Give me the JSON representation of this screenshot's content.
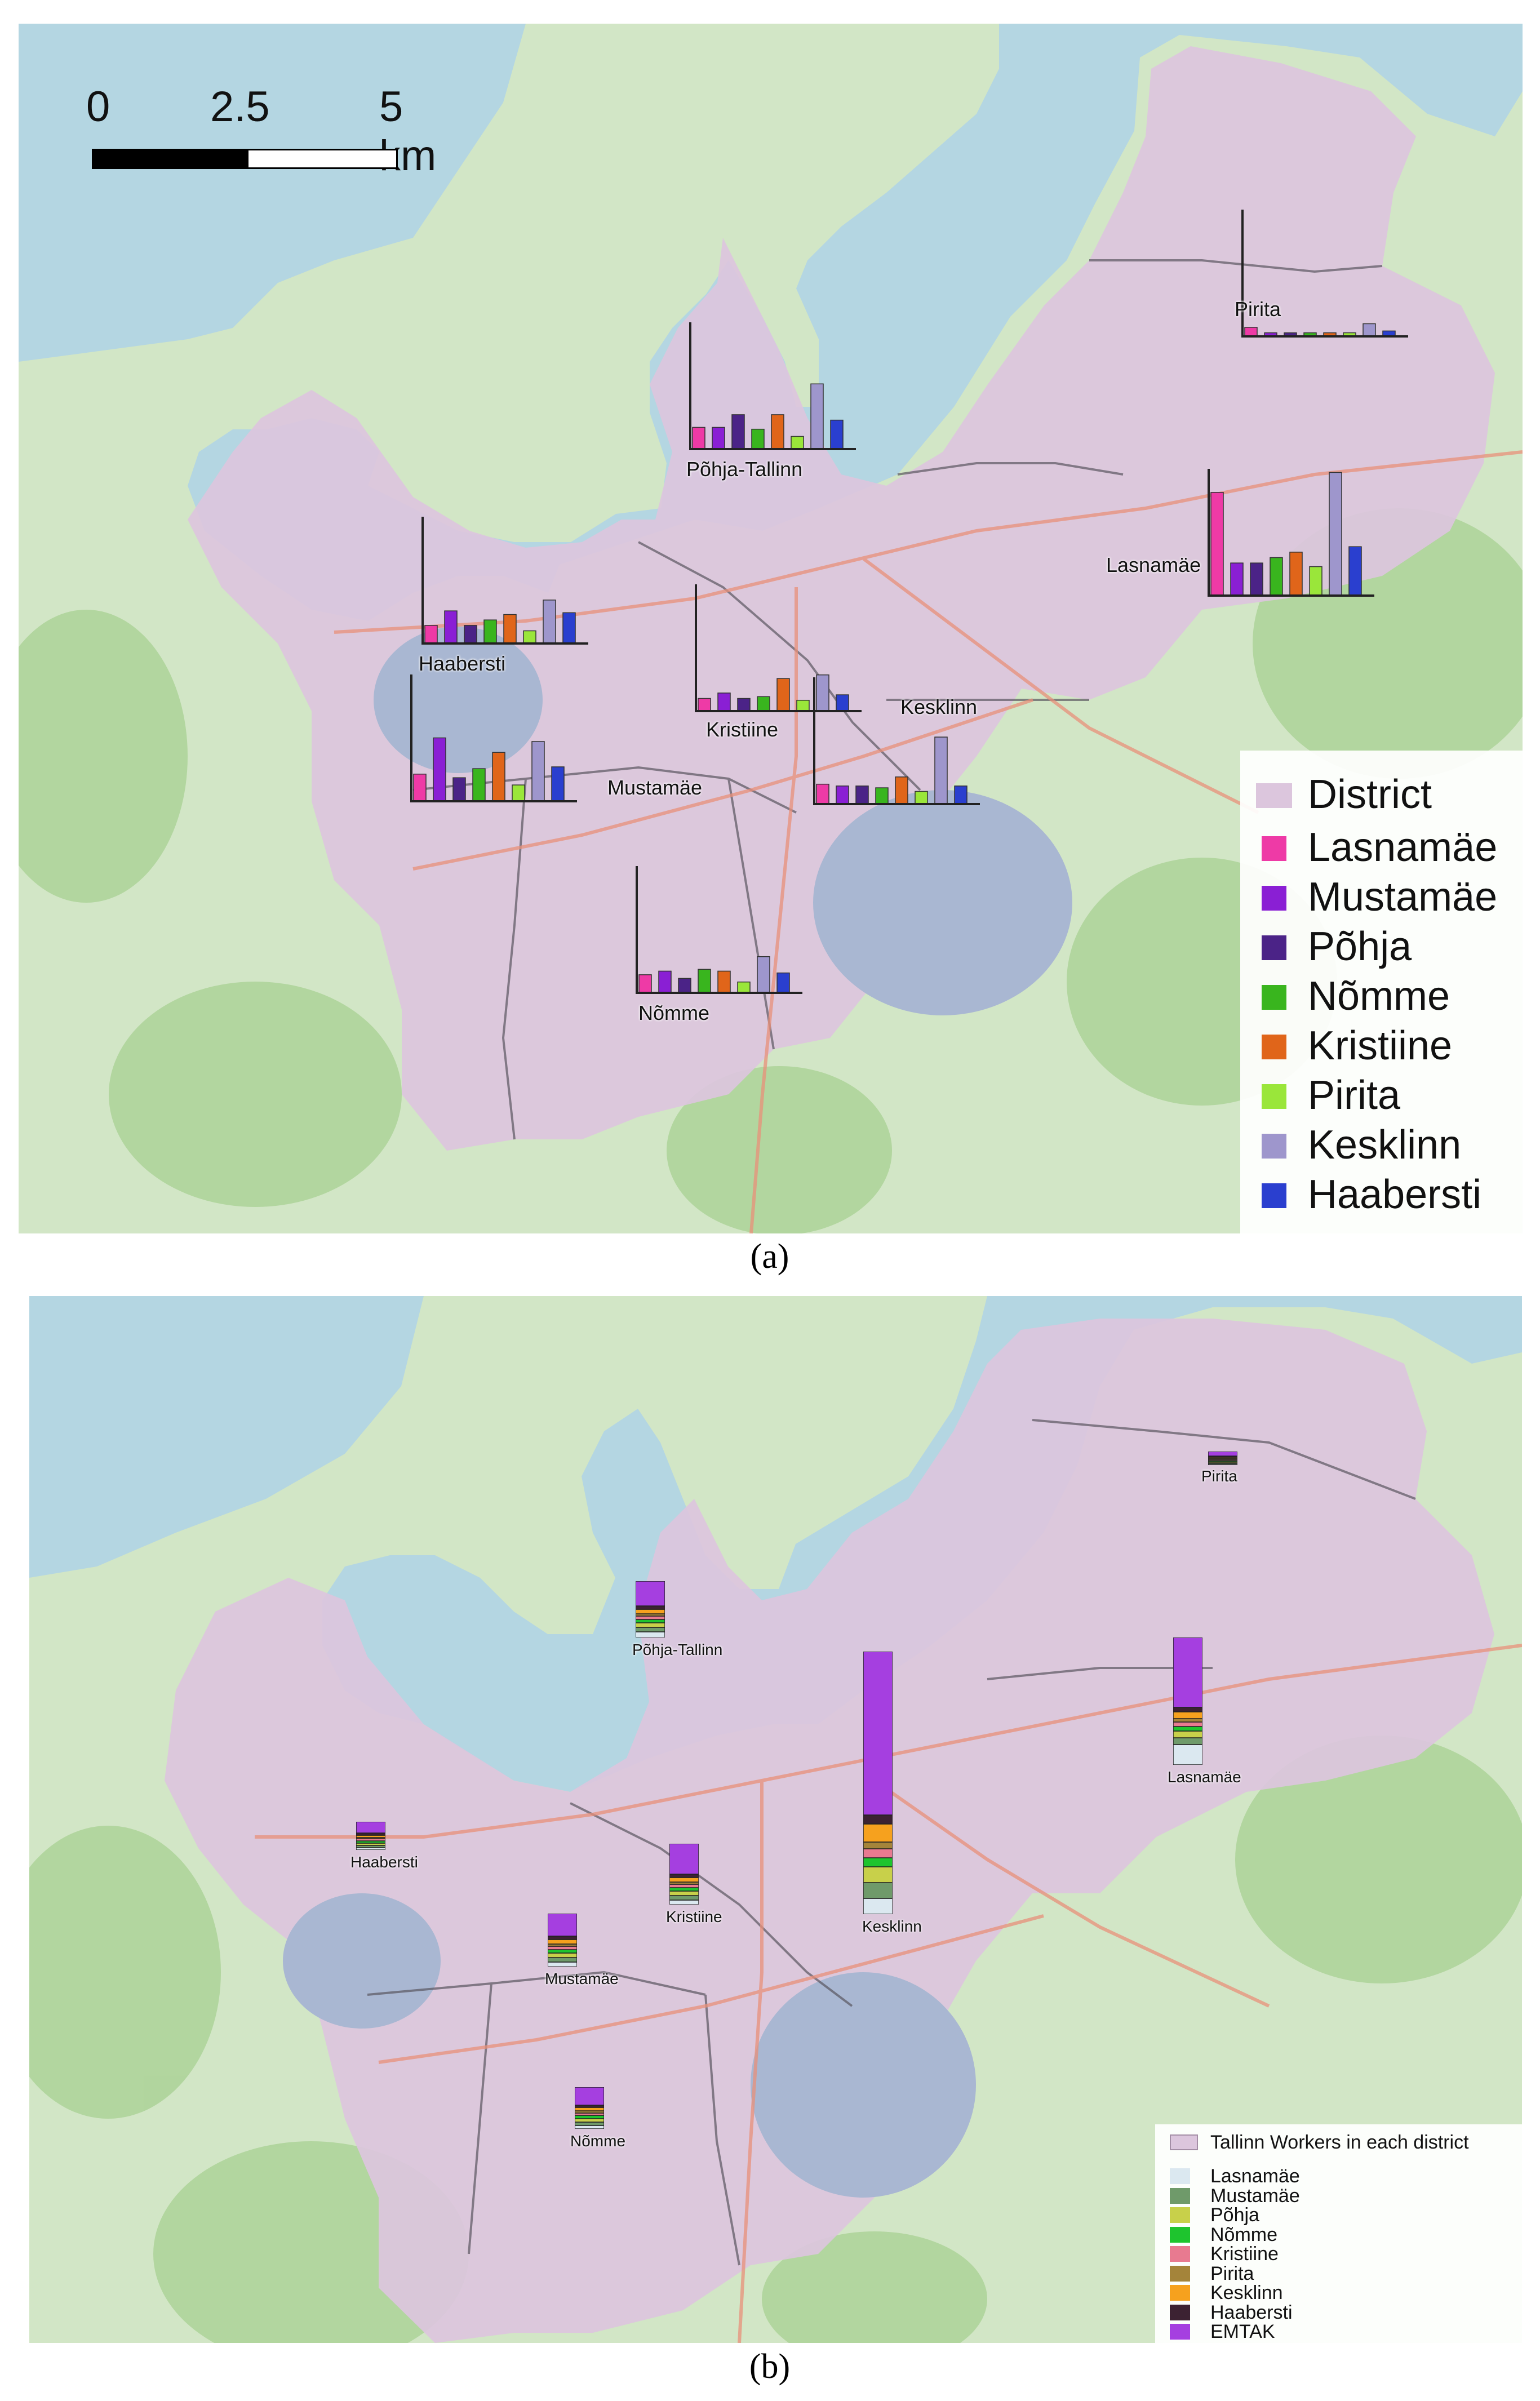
{
  "panel_a": {
    "caption": "(a)",
    "scalebar": {
      "labels": [
        "0",
        "2.5",
        "5 km"
      ]
    },
    "legend": {
      "title": "District",
      "items": [
        {
          "name": "Lasnamäe",
          "color": "#ee3aa6"
        },
        {
          "name": "Mustamäe",
          "color": "#8a1fd4"
        },
        {
          "name": "Põhja",
          "color": "#4b2387"
        },
        {
          "name": "Nõmme",
          "color": "#39b51e"
        },
        {
          "name": "Kristiine",
          "color": "#e0651a"
        },
        {
          "name": "Pirita",
          "color": "#9ae63a"
        },
        {
          "name": "Kesklinn",
          "color": "#9e96cc"
        },
        {
          "name": "Haabersti",
          "color": "#2a3fcf"
        }
      ],
      "district_color": "#dcc6dd"
    },
    "districts": [
      {
        "name": "Pirita",
        "values": [
          5,
          2,
          2,
          2,
          2,
          2,
          7,
          3
        ]
      },
      {
        "name": "Põhja-Tallinn",
        "values": [
          12,
          12,
          19,
          11,
          19,
          7,
          36,
          16
        ]
      },
      {
        "name": "Lasnamäe",
        "values": [
          57,
          18,
          18,
          21,
          24,
          16,
          68,
          27
        ]
      },
      {
        "name": "Haabersti",
        "values": [
          10,
          18,
          10,
          13,
          16,
          7,
          24,
          17
        ]
      },
      {
        "name": "Kristiine",
        "values": [
          7,
          10,
          7,
          8,
          18,
          6,
          20,
          9
        ]
      },
      {
        "name": "Kesklinn",
        "values": [
          11,
          10,
          10,
          9,
          15,
          7,
          37,
          10
        ]
      },
      {
        "name": "Mustamäe",
        "values": [
          15,
          35,
          13,
          18,
          27,
          9,
          33,
          19
        ]
      },
      {
        "name": "Nõmme",
        "values": [
          10,
          12,
          8,
          13,
          12,
          6,
          20,
          11
        ]
      }
    ]
  },
  "panel_b": {
    "caption": "(b)",
    "legend": {
      "title": "Tallinn Workers in each district",
      "items": [
        {
          "name": "Lasnamäe",
          "color": "#dbe8f0"
        },
        {
          "name": "Mustamäe",
          "color": "#6f9a6a"
        },
        {
          "name": "Põhja",
          "color": "#c8d04a"
        },
        {
          "name": "Nõmme",
          "color": "#1ec42e"
        },
        {
          "name": "Kristiine",
          "color": "#e87a90"
        },
        {
          "name": "Pirita",
          "color": "#a4843a"
        },
        {
          "name": "Kesklinn",
          "color": "#f6a11e"
        },
        {
          "name": "Haabersti",
          "color": "#3c2232"
        },
        {
          "name": "EMTAK",
          "color": "#a53fe0"
        }
      ],
      "district_color": "#dcc6dd"
    },
    "districts": [
      {
        "name": "Pirita",
        "values": [
          1,
          1,
          1,
          1,
          1,
          1,
          1,
          1,
          4
        ]
      },
      {
        "name": "Põhja-Tallinn",
        "values": [
          5,
          4,
          4,
          3,
          3,
          2,
          4,
          3,
          22
        ]
      },
      {
        "name": "Lasnamäe",
        "values": [
          18,
          6,
          6,
          4,
          4,
          3,
          6,
          4,
          62
        ]
      },
      {
        "name": "Haabersti",
        "values": [
          2,
          2,
          2,
          2,
          2,
          1,
          2,
          2,
          10
        ]
      },
      {
        "name": "Kristiine",
        "values": [
          4,
          4,
          4,
          3,
          3,
          2,
          4,
          3,
          27
        ]
      },
      {
        "name": "Kesklinn",
        "values": [
          14,
          14,
          14,
          8,
          8,
          6,
          16,
          8,
          145
        ]
      },
      {
        "name": "Mustamäe",
        "values": [
          4,
          4,
          4,
          3,
          3,
          2,
          4,
          3,
          20
        ]
      },
      {
        "name": "Nõmme",
        "values": [
          3,
          3,
          3,
          3,
          2,
          2,
          3,
          2,
          16
        ]
      }
    ]
  }
}
